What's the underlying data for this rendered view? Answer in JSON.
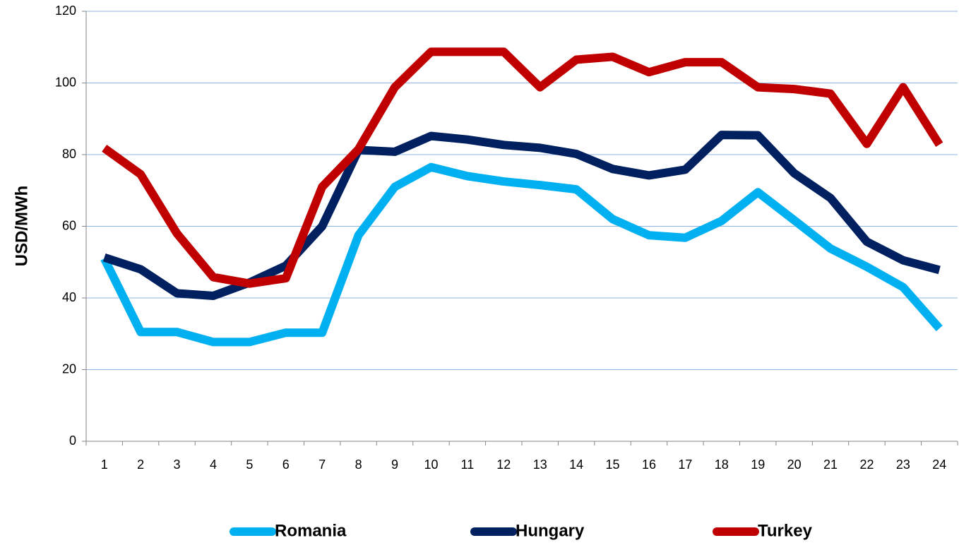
{
  "chart_data": {
    "type": "line",
    "y_label": "USD/MWh",
    "categories": [
      "1",
      "2",
      "3",
      "4",
      "5",
      "6",
      "7",
      "8",
      "9",
      "10",
      "11",
      "12",
      "13",
      "14",
      "15",
      "16",
      "17",
      "18",
      "19",
      "20",
      "21",
      "22",
      "23",
      "24"
    ],
    "series": [
      {
        "name": "Romania",
        "color": "#00b0f0",
        "values": [
          51,
          30.5,
          30.5,
          27.7,
          27.7,
          30.3,
          30.3,
          57.5,
          71,
          76.5,
          74,
          72.5,
          71.5,
          70.3,
          62,
          57.5,
          56.8,
          61.5,
          69.5,
          61.7,
          53.8,
          48.7,
          43,
          31.5
        ]
      },
      {
        "name": "Hungary",
        "color": "#002060",
        "values": [
          51.3,
          48,
          41.3,
          40.6,
          44.3,
          49,
          60,
          81.3,
          80.8,
          85.2,
          84.2,
          82.7,
          81.9,
          80.2,
          76,
          74.2,
          75.8,
          85.5,
          85.4,
          74.8,
          67.9,
          55.7,
          50.5,
          47.8
        ]
      },
      {
        "name": "Turkey",
        "color": "#c00000",
        "values": [
          81.8,
          74.5,
          58,
          45.8,
          44,
          45.5,
          71,
          81.5,
          98.8,
          108.7,
          108.7,
          108.7,
          98.8,
          106.5,
          107.3,
          103,
          105.8,
          105.8,
          98.8,
          98.3,
          97,
          83,
          98.8,
          82.8
        ]
      }
    ],
    "ylim": [
      0,
      120
    ],
    "yticks": [
      0,
      20,
      40,
      60,
      80,
      100,
      120
    ],
    "grid": true,
    "legend": "bottom"
  }
}
